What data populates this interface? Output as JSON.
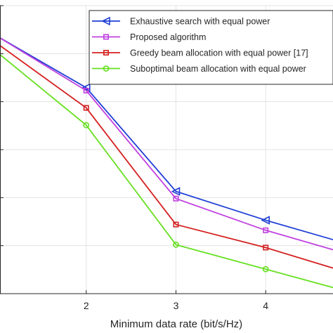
{
  "chart_data": {
    "type": "line",
    "title": "",
    "xlabel": "Minimum data rate (bit/s/Hz)",
    "ylabel": "",
    "x": [
      1,
      2,
      3,
      4,
      5
    ],
    "x_tick_labels": [
      "2",
      "3",
      "4"
    ],
    "xlim": [
      1,
      4.75
    ],
    "ylim": [
      0,
      1
    ],
    "grid": true,
    "legend_position": "top-right",
    "series": [
      {
        "name": "Exhaustive search with equal power",
        "color": "#1f3fd6",
        "marker": "triangle-left",
        "values": [
          0.895,
          0.715,
          0.355,
          0.255,
          0.165
        ]
      },
      {
        "name": " Proposed algorithm",
        "color": "#c040e0",
        "marker": "square",
        "values": [
          0.895,
          0.705,
          0.33,
          0.22,
          0.13
        ]
      },
      {
        "name": "Greedy beam allocation with equal power [17]",
        "color": "#d42020",
        "marker": "square",
        "values": [
          0.87,
          0.645,
          0.24,
          0.16,
          0.065
        ]
      },
      {
        "name": "Suboptimal beam allocation with equal power",
        "color": "#66e020",
        "marker": "circle",
        "values": [
          0.84,
          0.585,
          0.17,
          0.085,
          0.0
        ]
      }
    ]
  }
}
